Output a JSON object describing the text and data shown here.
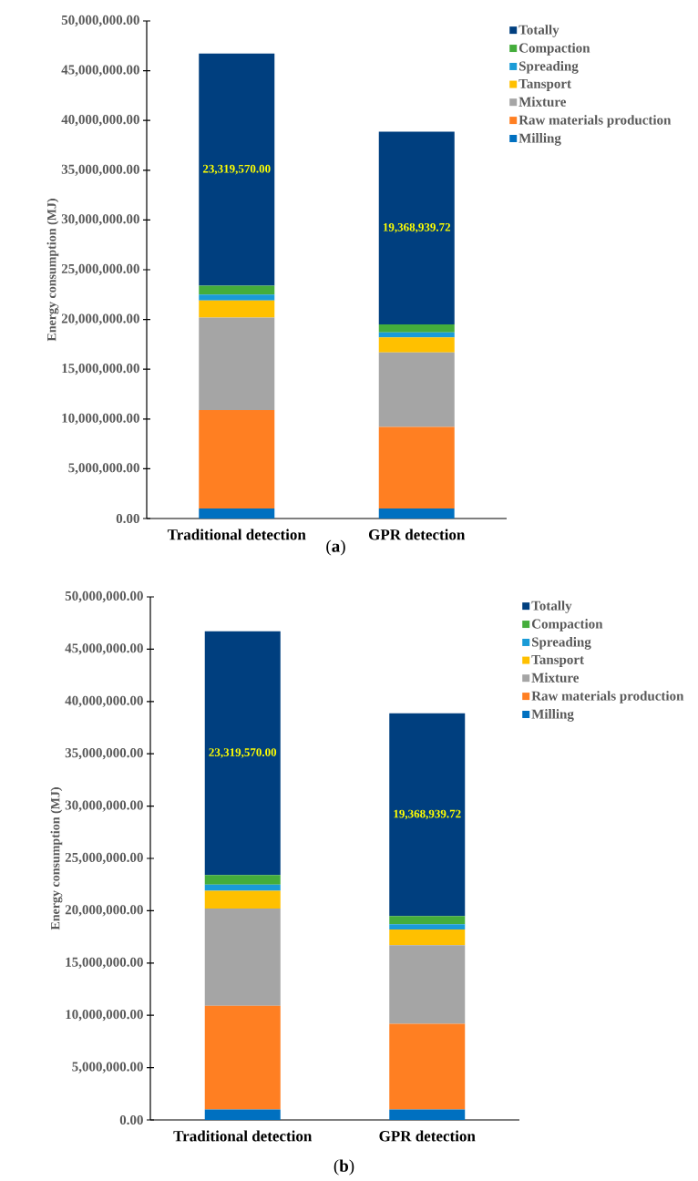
{
  "chart_data": [
    {
      "type": "bar",
      "stacked": true,
      "ylabel": "Energy consumption (MJ)",
      "annotations": [
        "(**a**)"
      ],
      "legend": "top right",
      "categories": [
        "Traditional detection",
        "GPR detection"
      ],
      "series": [
        {
          "name": "Milling",
          "color": "#0070c0",
          "values": [
            1000000,
            1000000
          ]
        },
        {
          "name": "Raw materials production",
          "color": "#ff7f22",
          "values": [
            9900000,
            8200000
          ]
        },
        {
          "name": "Mixture",
          "color": "#a5a5a5",
          "values": [
            9300000,
            7500000
          ]
        },
        {
          "name": "Tansport",
          "color": "#ffc000",
          "values": [
            1700000,
            1500000
          ]
        },
        {
          "name": "Spreading",
          "color": "#1a9bd7",
          "values": [
            600000,
            500000
          ]
        },
        {
          "name": "Compaction",
          "color": "#44ad3b",
          "values": [
            900000,
            800000
          ]
        },
        {
          "name": "Totally",
          "color": "#003f7f",
          "values": [
            23319570.0,
            19368939.72
          ],
          "value_labels": [
            "23,319,570.00",
            "19,368,939.72"
          ]
        }
      ],
      "ylim": [
        0,
        50000000
      ],
      "yticks": [
        {
          "value": 0,
          "label": "0.00"
        },
        {
          "value": 5000000,
          "label": "5,000,000.00"
        },
        {
          "value": 10000000,
          "label": "10,000,000.00"
        },
        {
          "value": 15000000,
          "label": "15,000,000.00"
        },
        {
          "value": 20000000,
          "label": "20,000,000.00"
        },
        {
          "value": 25000000,
          "label": "25,000,000.00"
        },
        {
          "value": 30000000,
          "label": "30,000,000.00"
        },
        {
          "value": 35000000,
          "label": "35,000,000.00"
        },
        {
          "value": 40000000,
          "label": "40,000,000.00"
        },
        {
          "value": 45000000,
          "label": "45,000,000.00"
        },
        {
          "value": 50000000,
          "label": "50,000,000.00"
        }
      ]
    },
    {
      "type": "bar",
      "stacked": true,
      "ylabel": "Energy consumption (MJ)",
      "annotations": [
        "(**b**)"
      ],
      "legend": "top right",
      "categories": [
        "Traditional detection",
        "GPR detection"
      ],
      "series": [
        {
          "name": "Milling",
          "color": "#0070c0",
          "values": [
            1000000,
            1000000
          ]
        },
        {
          "name": "Raw materials production",
          "color": "#ff7f22",
          "values": [
            9900000,
            8200000
          ]
        },
        {
          "name": "Mixture",
          "color": "#a5a5a5",
          "values": [
            9300000,
            7500000
          ]
        },
        {
          "name": "Tansport",
          "color": "#ffc000",
          "values": [
            1700000,
            1500000
          ]
        },
        {
          "name": "Spreading",
          "color": "#1a9bd7",
          "values": [
            600000,
            500000
          ]
        },
        {
          "name": "Compaction",
          "color": "#44ad3b",
          "values": [
            900000,
            800000
          ]
        },
        {
          "name": "Totally",
          "color": "#003f7f",
          "values": [
            23319570.0,
            19368939.72
          ],
          "value_labels": [
            "23,319,570.00",
            "19,368,939.72"
          ]
        }
      ],
      "ylim": [
        0,
        50000000
      ],
      "yticks": [
        {
          "value": 0,
          "label": "0.00"
        },
        {
          "value": 5000000,
          "label": "5,000,000.00"
        },
        {
          "value": 10000000,
          "label": "10,000,000.00"
        },
        {
          "value": 15000000,
          "label": "15,000,000.00"
        },
        {
          "value": 20000000,
          "label": "20,000,000.00"
        },
        {
          "value": 25000000,
          "label": "25,000,000.00"
        },
        {
          "value": 30000000,
          "label": "30,000,000.00"
        },
        {
          "value": 35000000,
          "label": "35,000,000.00"
        },
        {
          "value": 40000000,
          "label": "40,000,000.00"
        },
        {
          "value": 45000000,
          "label": "45,000,000.00"
        },
        {
          "value": 50000000,
          "label": "50,000,000.00"
        }
      ]
    }
  ]
}
